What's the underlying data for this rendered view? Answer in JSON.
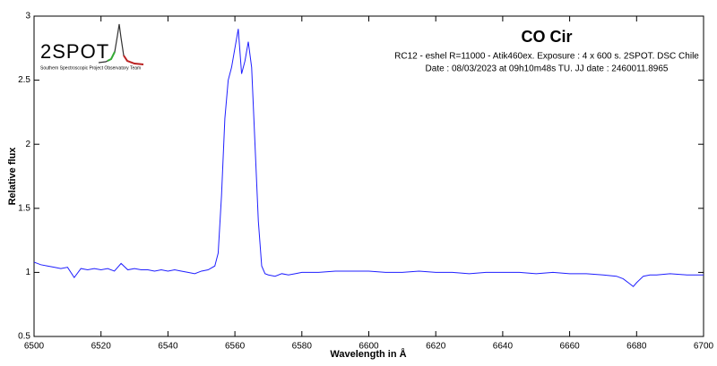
{
  "chart_data": {
    "type": "line",
    "title": "CO Cir",
    "subtitle": [
      "RC12 - eshel R=11000 - Atik460ex. Exposure : 4 x 600 s. 2SPOT. DSC Chile",
      "Date : 08/03/2023 at 09h10m48s TU. JJ date : 2460011.8965"
    ],
    "logo": {
      "title": "2SPOT",
      "subtitle": "Southern Spectroscopic Project Observatory Team"
    },
    "xlabel": "Wavelength in Å",
    "ylabel": "Relative flux",
    "color": "#1f1fff",
    "x": [
      6500,
      6502,
      6504,
      6506,
      6508,
      6510,
      6512,
      6514,
      6516,
      6518,
      6520,
      6522,
      6524,
      6526,
      6528,
      6530,
      6532,
      6534,
      6536,
      6538,
      6540,
      6542,
      6544,
      6546,
      6548,
      6550,
      6552,
      6554,
      6555,
      6556,
      6557,
      6558,
      6559,
      6560,
      6561,
      6562,
      6563,
      6564,
      6565,
      6566,
      6567,
      6568,
      6569,
      6570,
      6572,
      6574,
      6576,
      6578,
      6580,
      6585,
      6590,
      6595,
      6600,
      6605,
      6610,
      6615,
      6620,
      6625,
      6630,
      6635,
      6640,
      6645,
      6650,
      6655,
      6660,
      6665,
      6670,
      6674,
      6676,
      6678,
      6679,
      6680,
      6682,
      6684,
      6686,
      6690,
      6695,
      6700
    ],
    "values": [
      1.08,
      1.06,
      1.05,
      1.04,
      1.03,
      1.04,
      0.96,
      1.03,
      1.02,
      1.03,
      1.02,
      1.03,
      1.01,
      1.07,
      1.02,
      1.03,
      1.02,
      1.02,
      1.01,
      1.02,
      1.01,
      1.02,
      1.01,
      1.0,
      0.99,
      1.01,
      1.02,
      1.05,
      1.15,
      1.6,
      2.2,
      2.5,
      2.6,
      2.75,
      2.9,
      2.55,
      2.65,
      2.8,
      2.6,
      2.0,
      1.4,
      1.05,
      0.99,
      0.98,
      0.97,
      0.99,
      0.98,
      0.99,
      1.0,
      1.0,
      1.01,
      1.01,
      1.01,
      1.0,
      1.0,
      1.01,
      1.0,
      1.0,
      0.99,
      1.0,
      1.0,
      1.0,
      0.99,
      1.0,
      0.99,
      0.99,
      0.98,
      0.97,
      0.95,
      0.91,
      0.89,
      0.92,
      0.97,
      0.98,
      0.98,
      0.99,
      0.98,
      0.98
    ],
    "xlim": [
      6500,
      6700
    ],
    "xticks": [
      6500,
      6520,
      6540,
      6560,
      6580,
      6600,
      6620,
      6640,
      6660,
      6680,
      6700
    ],
    "ylim": [
      0.5,
      3
    ],
    "yticks": [
      0.5,
      1,
      1.5,
      2,
      2.5,
      3
    ]
  }
}
